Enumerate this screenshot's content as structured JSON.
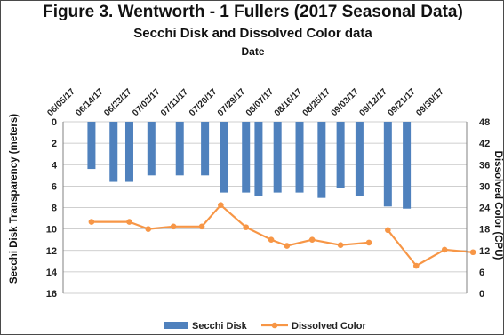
{
  "title": "Figure 3. Wentworth - 1 Fullers (2017 Seasonal Data)",
  "subtitle": "Secchi Disk and Dissolved Color data",
  "chart_data": {
    "type": "bar",
    "x_axis_title": "Date",
    "categories": [
      "06/05/17",
      "06/14/17",
      "06/23/17",
      "07/02/17",
      "07/11/17",
      "07/20/17",
      "07/29/17",
      "08/07/17",
      "08/16/17",
      "08/25/17",
      "09/03/17",
      "09/12/17",
      "09/21/17",
      "09/30/17"
    ],
    "primary_axis": {
      "label": "Secchi Disk Transparency (meters)",
      "range": [
        0,
        16
      ],
      "reversed": true,
      "ticks": [
        0,
        2,
        4,
        6,
        8,
        10,
        12,
        14,
        16
      ]
    },
    "secondary_axis": {
      "label": "Dissolved Color (CPU)",
      "range": [
        0,
        48
      ],
      "ticks": [
        0,
        6,
        12,
        18,
        24,
        30,
        36,
        42,
        48
      ]
    },
    "series": [
      {
        "name": "Secchi Disk",
        "kind": "bar",
        "axis": "primary",
        "color": "#4f81bd",
        "points": [
          {
            "x": "06/14/17",
            "y": 4.4
          },
          {
            "x": "06/21/17",
            "y": 5.6
          },
          {
            "x": "06/26/17",
            "y": 5.6
          },
          {
            "x": "07/03/17",
            "y": 5.0
          },
          {
            "x": "07/12/17",
            "y": 5.0
          },
          {
            "x": "07/20/17",
            "y": 5.0
          },
          {
            "x": "07/26/17",
            "y": 6.6
          },
          {
            "x": "08/02/17",
            "y": 6.6
          },
          {
            "x": "08/06/17",
            "y": 6.9
          },
          {
            "x": "08/12/17",
            "y": 6.6
          },
          {
            "x": "08/19/17",
            "y": 6.6
          },
          {
            "x": "08/26/17",
            "y": 7.1
          },
          {
            "x": "09/01/17",
            "y": 6.2
          },
          {
            "x": "09/07/17",
            "y": 6.9
          },
          {
            "x": "09/16/17",
            "y": 7.9
          },
          {
            "x": "09/22/17",
            "y": 8.1
          }
        ]
      },
      {
        "name": "Dissolved Color",
        "kind": "line",
        "axis": "secondary",
        "color": "#f79646",
        "segments": [
          [
            {
              "x": "06/14/17",
              "y": 20
            },
            {
              "x": "06/26/17",
              "y": 20
            },
            {
              "x": "07/02/17",
              "y": 18
            },
            {
              "x": "07/10/17",
              "y": 18.7
            },
            {
              "x": "07/19/17",
              "y": 18.7
            },
            {
              "x": "07/25/17",
              "y": 24.7
            },
            {
              "x": "08/02/17",
              "y": 18.5
            },
            {
              "x": "08/10/17",
              "y": 15
            },
            {
              "x": "08/15/17",
              "y": 13.3
            },
            {
              "x": "08/23/17",
              "y": 15
            },
            {
              "x": "09/01/17",
              "y": 13.5
            },
            {
              "x": "09/10/17",
              "y": 14.2
            }
          ],
          [
            {
              "x": "09/16/17",
              "y": 17.7
            },
            {
              "x": "09/25/17",
              "y": 7.7
            },
            {
              "x": "10/04/17",
              "y": 12.2
            },
            {
              "x": "10/13/17",
              "y": 11.5
            }
          ]
        ]
      }
    ],
    "legend_position": "bottom",
    "grid": "horizontal"
  }
}
